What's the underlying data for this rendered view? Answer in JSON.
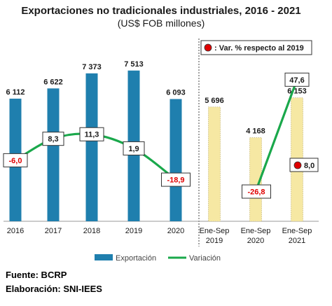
{
  "title": "Exportaciones no tradicionales industriales, 2016 - 2021",
  "subtitle": "(US$ FOB millones)",
  "footer": {
    "source": "Fuente: BCRP",
    "prepared_by": "Elaboración: SNI-IEES"
  },
  "colors": {
    "bar_annual": "#1f7fae",
    "bar_partial": "#f6e8a3",
    "line": "#1aa84b",
    "negative_text": "#e00000",
    "dot": "#e00000"
  },
  "chart_data": {
    "type": "bar",
    "categories": [
      "2016",
      "2017",
      "2018",
      "2019",
      "2020",
      "Ene-Sep 2019",
      "Ene-Sep 2020",
      "Ene-Sep 2021"
    ],
    "tick_labels": [
      [
        "2016"
      ],
      [
        "2017"
      ],
      [
        "2018"
      ],
      [
        "2019"
      ],
      [
        "2020"
      ],
      [
        "Ene-Sep",
        "2019"
      ],
      [
        "Ene-Sep",
        "2020"
      ],
      [
        "Ene-Sep",
        "2021"
      ]
    ],
    "series": [
      {
        "name": "Exportación",
        "type": "bar",
        "values": [
          6112,
          6622,
          7373,
          7513,
          6093,
          5696,
          4168,
          6153
        ],
        "labels": [
          "6 112",
          "6 622",
          "7 373",
          "7 513",
          "6 093",
          "5 696",
          "4 168",
          "6 153"
        ]
      },
      {
        "name": "Variación",
        "type": "line",
        "values": [
          -6.0,
          8.3,
          11.3,
          1.9,
          -18.9,
          null,
          -26.8,
          47.6
        ],
        "labels": [
          "-6,0",
          "8,3",
          "11,3",
          "1,9",
          "-18,9",
          null,
          "-26,8",
          "47,6"
        ]
      }
    ],
    "annotation": {
      "label": ": Var. % respecto al 2019",
      "value_label": "8,0",
      "value": 8.0
    },
    "legend": {
      "position": "bottom"
    },
    "ylim_bars": [
      0,
      8000
    ]
  }
}
